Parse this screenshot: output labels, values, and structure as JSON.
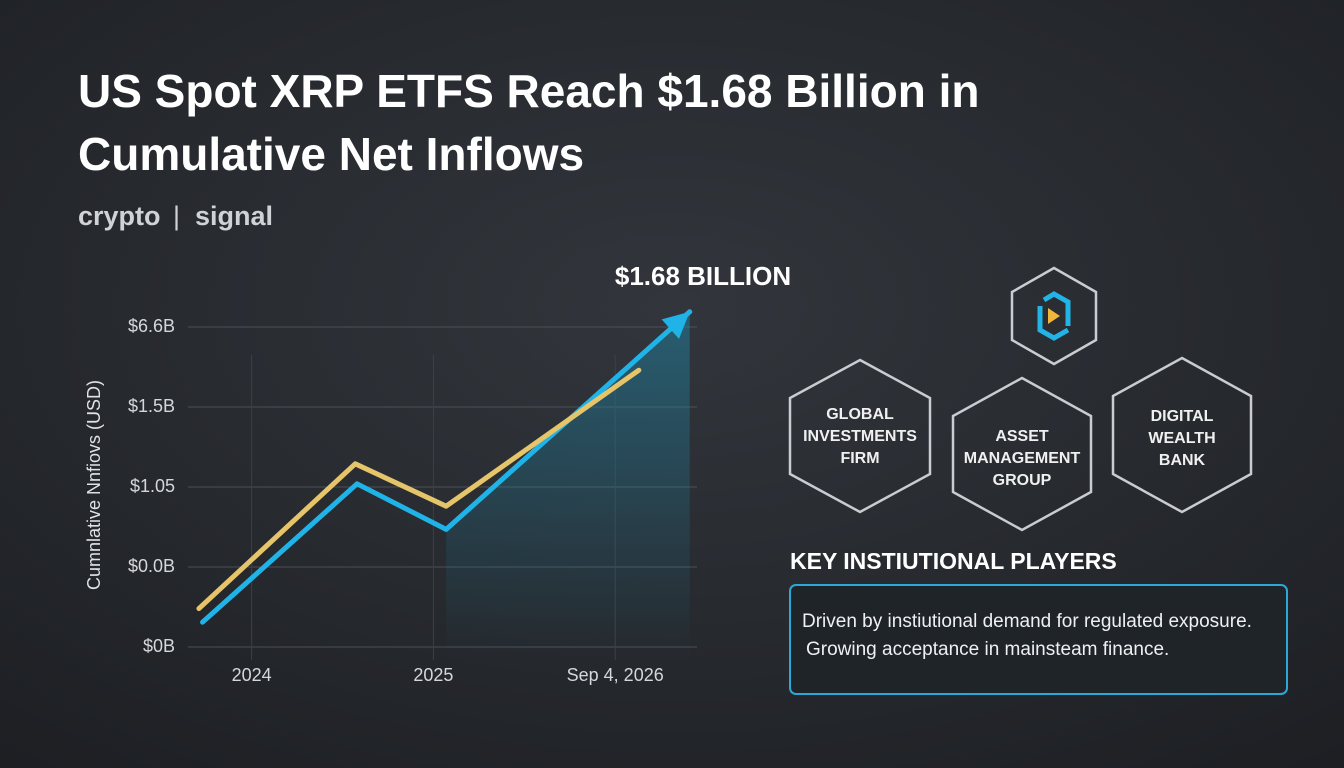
{
  "header": {
    "title_line1": "US Spot XRP ETFS Reach $1.68 Billion in",
    "title_line2": "Cumulative Net Inflows",
    "brand_left": "crypto",
    "brand_sep": "|",
    "brand_right": "signal"
  },
  "chart_data": {
    "type": "line",
    "y_label": "Cumnlative Nnfiovs (USD)",
    "annotation": "$1.68 BILLION",
    "ylim": [
      -0.35,
      4.4
    ],
    "yticks": [
      {
        "value": 4,
        "label": "$6.6B"
      },
      {
        "value": 3,
        "label": "$1.5B"
      },
      {
        "value": 2,
        "label": "$1.05"
      },
      {
        "value": 1,
        "label": "$0.0B"
      },
      {
        "value": 0,
        "label": "$0B"
      }
    ],
    "xlim": [
      -0.35,
      2.45
    ],
    "xticks": [
      {
        "value": 0,
        "label": "2024"
      },
      {
        "value": 1,
        "label": "2025"
      },
      {
        "value": 2,
        "label": "Sep 4, 2026"
      }
    ],
    "grid": true,
    "series": [
      {
        "color": "#1fb3e8",
        "x": [
          -0.27,
          0.58,
          1.07,
          2.41
        ],
        "values": [
          0.31,
          2.04,
          1.47,
          4.19
        ]
      },
      {
        "color": "#e6c46a",
        "x": [
          -0.29,
          0.57,
          1.07,
          2.13
        ],
        "values": [
          0.48,
          2.29,
          1.76,
          3.46
        ]
      }
    ]
  },
  "players": {
    "heading": "KEY INSTIUTIONAL PLAYERS",
    "hex1": [
      "GLOBAL",
      "INVESTMENTS",
      "FIRM"
    ],
    "hex2": [
      "ASSET",
      "MANAGEMENT",
      "GROUP"
    ],
    "hex3": [
      "DIGITAL",
      "WEALTH",
      "BANK"
    ],
    "note_line1": "Driven by instiutional demand for regulated exposure.",
    "note_line2": "Growing acceptance in mainsteam finance."
  }
}
